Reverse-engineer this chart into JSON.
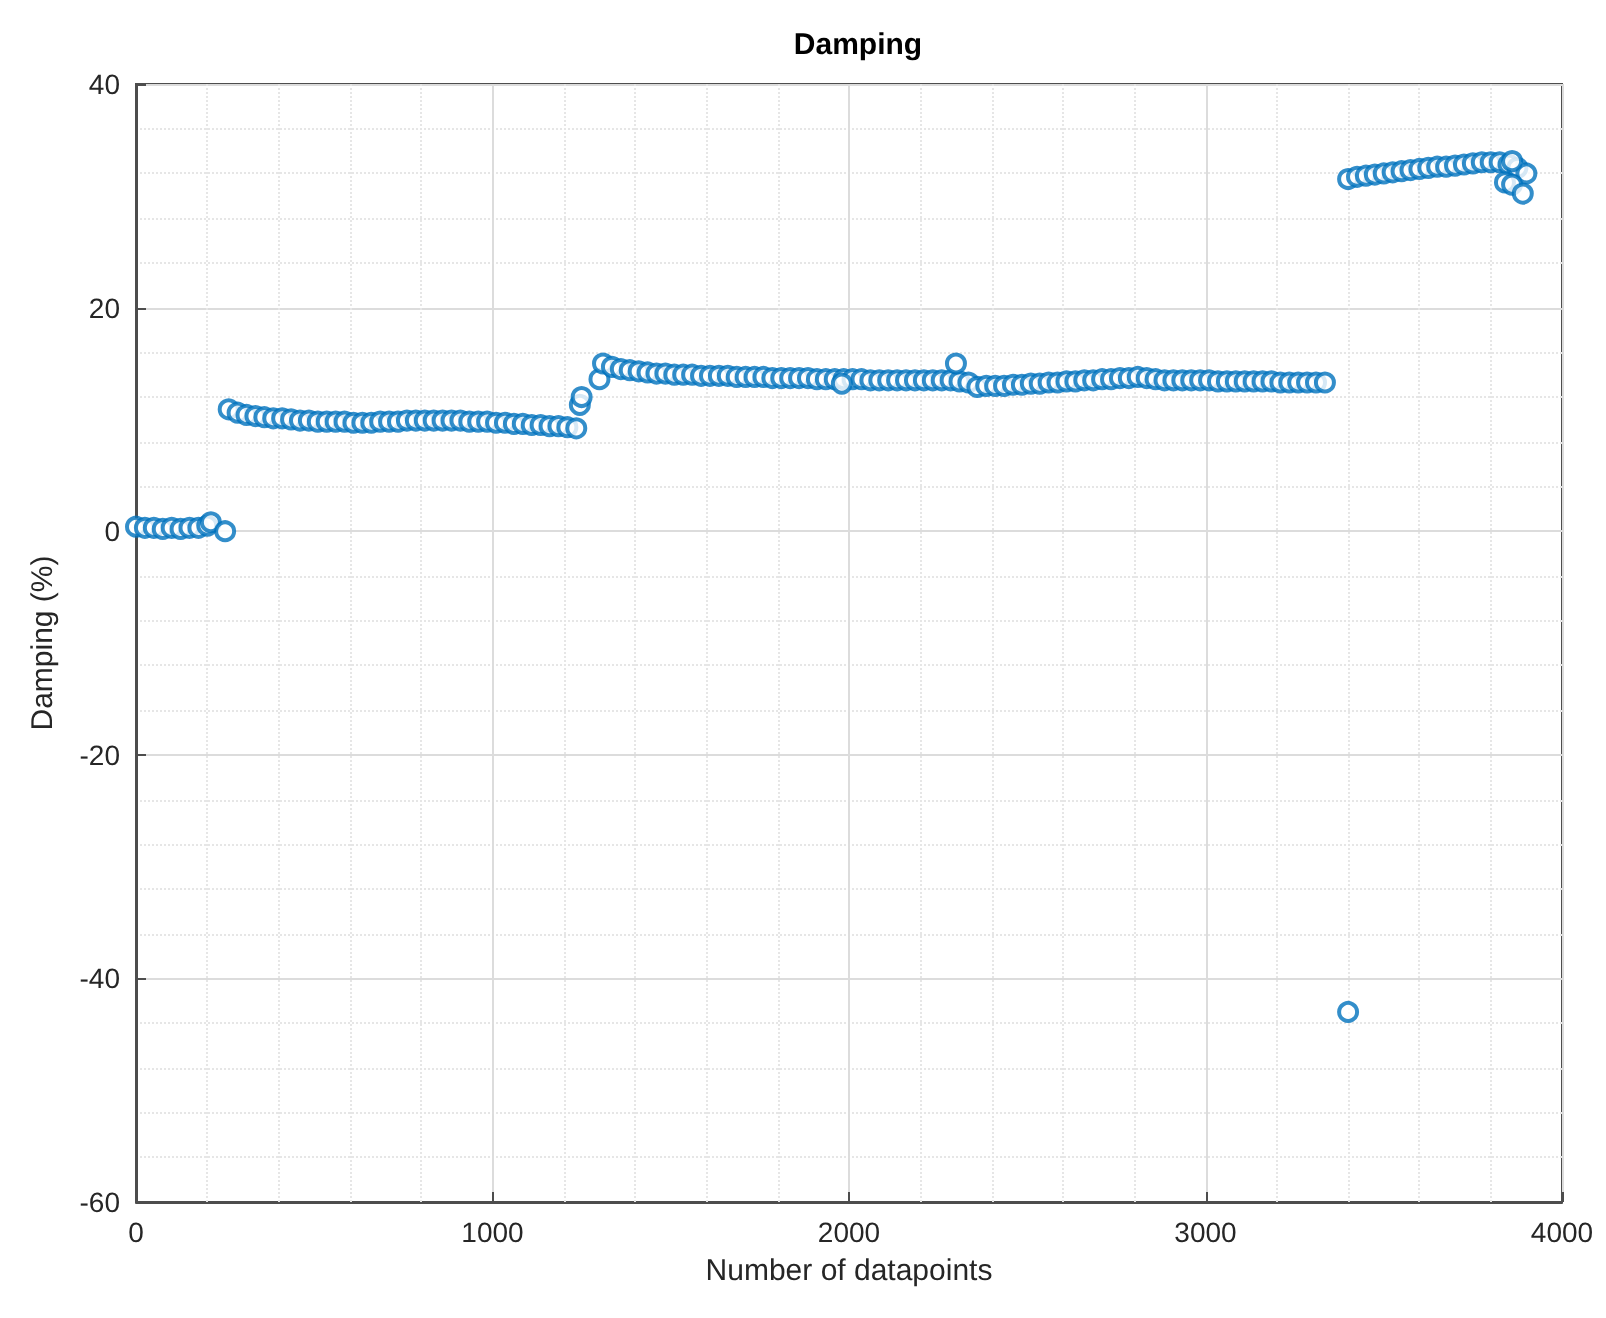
{
  "chart_data": {
    "type": "scatter",
    "title": "Damping",
    "xlabel": "Number of datapoints",
    "ylabel": "Damping (%)",
    "xlim": [
      0,
      4000
    ],
    "xticks": [
      0,
      1000,
      2000,
      3000,
      4000
    ],
    "ylim": [
      -60,
      40
    ],
    "yticks": [
      -60,
      -40,
      -20,
      0,
      20,
      40
    ],
    "grid": true,
    "marker": "circle",
    "series": [
      {
        "color": "#0072bd",
        "x": [
          0,
          25,
          50,
          75,
          100,
          125,
          150,
          175,
          200,
          210,
          250,
          260,
          285,
          310,
          335,
          360,
          385,
          410,
          435,
          460,
          485,
          510,
          535,
          560,
          585,
          610,
          635,
          660,
          685,
          710,
          735,
          760,
          785,
          810,
          835,
          860,
          885,
          910,
          935,
          960,
          985,
          1010,
          1035,
          1060,
          1085,
          1110,
          1135,
          1160,
          1185,
          1210,
          1235,
          1245,
          1250,
          1300,
          1310,
          1335,
          1360,
          1385,
          1410,
          1435,
          1460,
          1485,
          1510,
          1535,
          1560,
          1585,
          1610,
          1635,
          1660,
          1685,
          1710,
          1735,
          1760,
          1785,
          1810,
          1835,
          1860,
          1885,
          1910,
          1935,
          1960,
          1985,
          2010,
          2035,
          2060,
          2085,
          2110,
          2135,
          2160,
          2185,
          2210,
          2235,
          2260,
          2285,
          2310,
          2300,
          2335,
          2360,
          2385,
          2410,
          2435,
          2460,
          2485,
          2510,
          2535,
          2560,
          2585,
          2610,
          2635,
          2660,
          2685,
          2710,
          2735,
          2760,
          2785,
          2810,
          2835,
          2860,
          2885,
          2910,
          2935,
          2960,
          2985,
          3010,
          3035,
          3060,
          3085,
          3110,
          3135,
          3160,
          3185,
          3210,
          3235,
          3260,
          3285,
          3310,
          3335,
          1980,
          3400,
          3425,
          3450,
          3475,
          3500,
          3525,
          3550,
          3575,
          3600,
          3625,
          3650,
          3675,
          3700,
          3725,
          3750,
          3775,
          3800,
          3825,
          3850,
          3875,
          3900,
          3840,
          3860,
          3890,
          3860,
          3400
        ],
        "values": [
          0.4,
          0.3,
          0.3,
          0.2,
          0.3,
          0.2,
          0.3,
          0.3,
          0.5,
          0.8,
          0,
          10.9,
          10.6,
          10.4,
          10.3,
          10.2,
          10.1,
          10.1,
          10.0,
          9.9,
          9.9,
          9.8,
          9.8,
          9.8,
          9.8,
          9.7,
          9.7,
          9.7,
          9.8,
          9.8,
          9.8,
          9.9,
          9.9,
          9.9,
          9.9,
          9.9,
          9.9,
          9.9,
          9.8,
          9.8,
          9.8,
          9.7,
          9.7,
          9.6,
          9.6,
          9.5,
          9.5,
          9.4,
          9.4,
          9.3,
          9.2,
          11.3,
          12,
          13.6,
          15.0,
          14.7,
          14.5,
          14.4,
          14.3,
          14.2,
          14.1,
          14.1,
          14.0,
          14.0,
          14.0,
          13.9,
          13.9,
          13.9,
          13.9,
          13.8,
          13.8,
          13.8,
          13.8,
          13.7,
          13.7,
          13.7,
          13.7,
          13.7,
          13.6,
          13.6,
          13.6,
          13.6,
          13.6,
          13.6,
          13.5,
          13.5,
          13.5,
          13.5,
          13.5,
          13.5,
          13.5,
          13.5,
          13.5,
          13.5,
          13.4,
          15,
          13.3,
          12.9,
          13.0,
          13.0,
          13.0,
          13.1,
          13.1,
          13.2,
          13.2,
          13.3,
          13.3,
          13.4,
          13.4,
          13.5,
          13.5,
          13.6,
          13.6,
          13.7,
          13.7,
          13.8,
          13.7,
          13.6,
          13.5,
          13.5,
          13.5,
          13.5,
          13.5,
          13.5,
          13.4,
          13.4,
          13.4,
          13.4,
          13.4,
          13.4,
          13.4,
          13.3,
          13.3,
          13.3,
          13.3,
          13.3,
          13.3,
          13.2,
          31.5,
          31.7,
          31.8,
          31.9,
          32.0,
          32.1,
          32.2,
          32.3,
          32.4,
          32.5,
          32.6,
          32.6,
          32.7,
          32.8,
          32.9,
          33.0,
          33.0,
          33.0,
          32.8,
          32.5,
          32.0,
          31.2,
          31.0,
          30.2,
          33.1,
          -43
        ]
      }
    ]
  }
}
